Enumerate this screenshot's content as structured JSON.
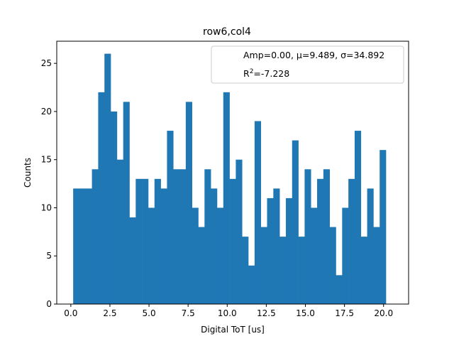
{
  "chart_data": {
    "type": "bar",
    "title": "row6,col4",
    "xlabel": "Digital ToT [us]",
    "ylabel": "Counts",
    "xlim": [
      -0.9,
      21.6
    ],
    "ylim": [
      0,
      27.3
    ],
    "bin_start": 0.15,
    "bin_width": 0.4,
    "values": [
      12,
      12,
      12,
      14,
      22,
      26,
      20,
      15,
      21,
      9,
      13,
      13,
      10,
      13,
      12,
      18,
      14,
      14,
      21,
      10,
      8,
      14,
      12,
      10,
      22,
      13,
      15,
      7,
      4,
      19,
      8,
      11,
      12,
      7,
      11,
      17,
      7,
      14,
      10,
      13,
      14,
      8,
      3,
      10,
      13,
      18,
      7,
      12,
      8,
      16
    ],
    "xticks": [
      0.0,
      2.5,
      5.0,
      7.5,
      10.0,
      12.5,
      15.0,
      17.5,
      20.0
    ],
    "xtick_labels": [
      "0.0",
      "2.5",
      "5.0",
      "7.5",
      "10.0",
      "12.5",
      "15.0",
      "17.5",
      "20.0"
    ],
    "yticks": [
      0,
      5,
      10,
      15,
      20,
      25
    ],
    "ytick_labels": [
      "0",
      "5",
      "10",
      "15",
      "20",
      "25"
    ],
    "bar_color": "#1f77b4",
    "grid": false,
    "legend": {
      "placement": "top-right",
      "line1": "Amp=0.00, μ=9.489, σ=34.892",
      "line2_prefix": "R",
      "line2_sup": "2",
      "line2_suffix": "=-7.228"
    }
  }
}
